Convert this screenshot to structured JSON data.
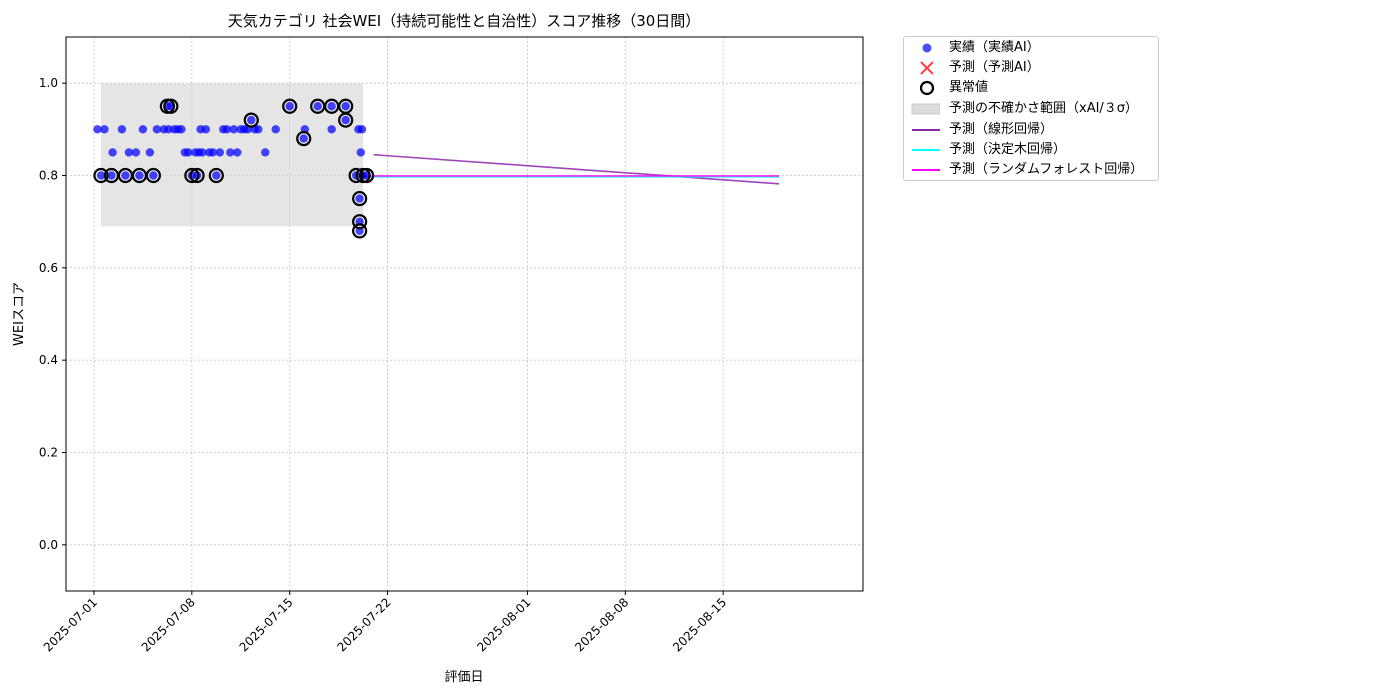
{
  "chart_data": {
    "type": "scatter",
    "title": "天気カテゴリ 社会WEI（持続可能性と自治性）スコア推移（30日間）",
    "xlabel": "評価日",
    "ylabel": "WEIスコア",
    "xlim": [
      "2025-06-29",
      "2025-08-25"
    ],
    "ylim": [
      -0.1,
      1.1
    ],
    "grid": true,
    "legend_position": "outside-right-top",
    "x_ticks": [
      "2025-07-01",
      "2025-07-08",
      "2025-07-15",
      "2025-07-22",
      "2025-08-01",
      "2025-08-08",
      "2025-08-15"
    ],
    "y_ticks": [
      "0.0",
      "0.2",
      "0.4",
      "0.6",
      "0.8",
      "1.0"
    ],
    "colors": {
      "actual": "#0000ff",
      "predicted": "#ff0000",
      "anomaly_edge": "#000000",
      "uncertainty": "#d3d3d3",
      "linear": "#8e24aa",
      "tree": "#00ffff",
      "forest": "#ff00ff"
    },
    "legend": [
      {
        "label": "実績（実績AI）",
        "kind": "dot",
        "color": "#0000ff"
      },
      {
        "label": "予測（予測AI）",
        "kind": "x",
        "color": "#ff0000"
      },
      {
        "label": "異常値",
        "kind": "ring",
        "color": "#000000"
      },
      {
        "label": "予測の不確かさ範囲（xAI/３σ）",
        "kind": "band",
        "color": "#d3d3d3"
      },
      {
        "label": "予測（線形回帰）",
        "kind": "line",
        "color": "#8e24aa"
      },
      {
        "label": "予測（決定木回帰）",
        "kind": "line",
        "color": "#00ffff"
      },
      {
        "label": "予測（ランダムフォレスト回帰）",
        "kind": "line",
        "color": "#ff00ff"
      }
    ],
    "uncertainty_band": {
      "x_start": "2025-07-01 12:00",
      "x_end": "2025-07-20 06:00",
      "y_low": 0.69,
      "y_high": 1.0
    },
    "series": [
      {
        "name": "実績（実績AI）",
        "points": [
          [
            "2025-07-01 06:00",
            0.9
          ],
          [
            "2025-07-01 12:00",
            0.8
          ],
          [
            "2025-07-01 18:00",
            0.9
          ],
          [
            "2025-07-02 06:00",
            0.8
          ],
          [
            "2025-07-02 08:00",
            0.85
          ],
          [
            "2025-07-03 00:00",
            0.9
          ],
          [
            "2025-07-03 06:00",
            0.8
          ],
          [
            "2025-07-03 12:00",
            0.85
          ],
          [
            "2025-07-04 00:00",
            0.85
          ],
          [
            "2025-07-04 06:00",
            0.8
          ],
          [
            "2025-07-04 12:00",
            0.9
          ],
          [
            "2025-07-05 00:00",
            0.85
          ],
          [
            "2025-07-05 06:00",
            0.8
          ],
          [
            "2025-07-05 12:00",
            0.9
          ],
          [
            "2025-07-06 00:00",
            0.9
          ],
          [
            "2025-07-06 06:00",
            0.95
          ],
          [
            "2025-07-06 08:00",
            0.9
          ],
          [
            "2025-07-06 12:00",
            0.95
          ],
          [
            "2025-07-06 18:00",
            0.9
          ],
          [
            "2025-07-07 00:00",
            0.9
          ],
          [
            "2025-07-07 06:00",
            0.9
          ],
          [
            "2025-07-07 12:00",
            0.85
          ],
          [
            "2025-07-07 18:00",
            0.85
          ],
          [
            "2025-07-08 00:00",
            0.8
          ],
          [
            "2025-07-08 06:00",
            0.85
          ],
          [
            "2025-07-08 09:00",
            0.8
          ],
          [
            "2025-07-08 12:00",
            0.85
          ],
          [
            "2025-07-08 15:00",
            0.9
          ],
          [
            "2025-07-08 18:00",
            0.85
          ],
          [
            "2025-07-09 00:00",
            0.9
          ],
          [
            "2025-07-09 06:00",
            0.85
          ],
          [
            "2025-07-09 12:00",
            0.85
          ],
          [
            "2025-07-09 18:00",
            0.8
          ],
          [
            "2025-07-10 00:00",
            0.85
          ],
          [
            "2025-07-10 06:00",
            0.9
          ],
          [
            "2025-07-10 12:00",
            0.9
          ],
          [
            "2025-07-10 18:00",
            0.85
          ],
          [
            "2025-07-11 00:00",
            0.9
          ],
          [
            "2025-07-11 06:00",
            0.85
          ],
          [
            "2025-07-11 12:00",
            0.9
          ],
          [
            "2025-07-11 18:00",
            0.9
          ],
          [
            "2025-07-12 00:00",
            0.9
          ],
          [
            "2025-07-12 06:00",
            0.92
          ],
          [
            "2025-07-12 12:00",
            0.9
          ],
          [
            "2025-07-12 18:00",
            0.9
          ],
          [
            "2025-07-13 06:00",
            0.85
          ],
          [
            "2025-07-14 00:00",
            0.9
          ],
          [
            "2025-07-15 00:00",
            0.95
          ],
          [
            "2025-07-16 00:00",
            0.88
          ],
          [
            "2025-07-16 02:00",
            0.9
          ],
          [
            "2025-07-17 00:00",
            0.95
          ],
          [
            "2025-07-18 00:00",
            0.95
          ],
          [
            "2025-07-18 00:00",
            0.9
          ],
          [
            "2025-07-19 00:00",
            0.95
          ],
          [
            "2025-07-19 00:00",
            0.92
          ],
          [
            "2025-07-19 18:00",
            0.8
          ],
          [
            "2025-07-19 22:00",
            0.9
          ],
          [
            "2025-07-20 00:00",
            0.75
          ],
          [
            "2025-07-20 00:00",
            0.7
          ],
          [
            "2025-07-20 00:00",
            0.68
          ],
          [
            "2025-07-20 02:00",
            0.85
          ],
          [
            "2025-07-20 04:00",
            0.9
          ],
          [
            "2025-07-20 06:00",
            0.8
          ],
          [
            "2025-07-20 12:00",
            0.8
          ]
        ]
      },
      {
        "name": "異常値",
        "points": [
          [
            "2025-07-01 12:00",
            0.8
          ],
          [
            "2025-07-02 06:00",
            0.8
          ],
          [
            "2025-07-03 06:00",
            0.8
          ],
          [
            "2025-07-04 06:00",
            0.8
          ],
          [
            "2025-07-05 06:00",
            0.8
          ],
          [
            "2025-07-06 06:00",
            0.95
          ],
          [
            "2025-07-06 12:00",
            0.95
          ],
          [
            "2025-07-08 00:00",
            0.8
          ],
          [
            "2025-07-08 09:00",
            0.8
          ],
          [
            "2025-07-09 18:00",
            0.8
          ],
          [
            "2025-07-12 06:00",
            0.92
          ],
          [
            "2025-07-15 00:00",
            0.95
          ],
          [
            "2025-07-16 00:00",
            0.88
          ],
          [
            "2025-07-17 00:00",
            0.95
          ],
          [
            "2025-07-18 00:00",
            0.95
          ],
          [
            "2025-07-19 00:00",
            0.95
          ],
          [
            "2025-07-19 00:00",
            0.92
          ],
          [
            "2025-07-19 18:00",
            0.8
          ],
          [
            "2025-07-20 00:00",
            0.75
          ],
          [
            "2025-07-20 00:00",
            0.7
          ],
          [
            "2025-07-20 00:00",
            0.68
          ],
          [
            "2025-07-20 06:00",
            0.8
          ],
          [
            "2025-07-20 12:00",
            0.8
          ]
        ]
      },
      {
        "name": "予測（線形回帰）",
        "points": [
          [
            "2025-07-21 00:00",
            0.845
          ],
          [
            "2025-08-19 00:00",
            0.782
          ]
        ]
      },
      {
        "name": "予測（決定木回帰）",
        "points": [
          [
            "2025-07-20 00:00",
            0.797
          ],
          [
            "2025-08-19 00:00",
            0.797
          ]
        ]
      },
      {
        "name": "予測（ランダムフォレスト回帰）",
        "points": [
          [
            "2025-07-20 00:00",
            0.799
          ],
          [
            "2025-08-19 00:00",
            0.799
          ]
        ]
      }
    ]
  }
}
